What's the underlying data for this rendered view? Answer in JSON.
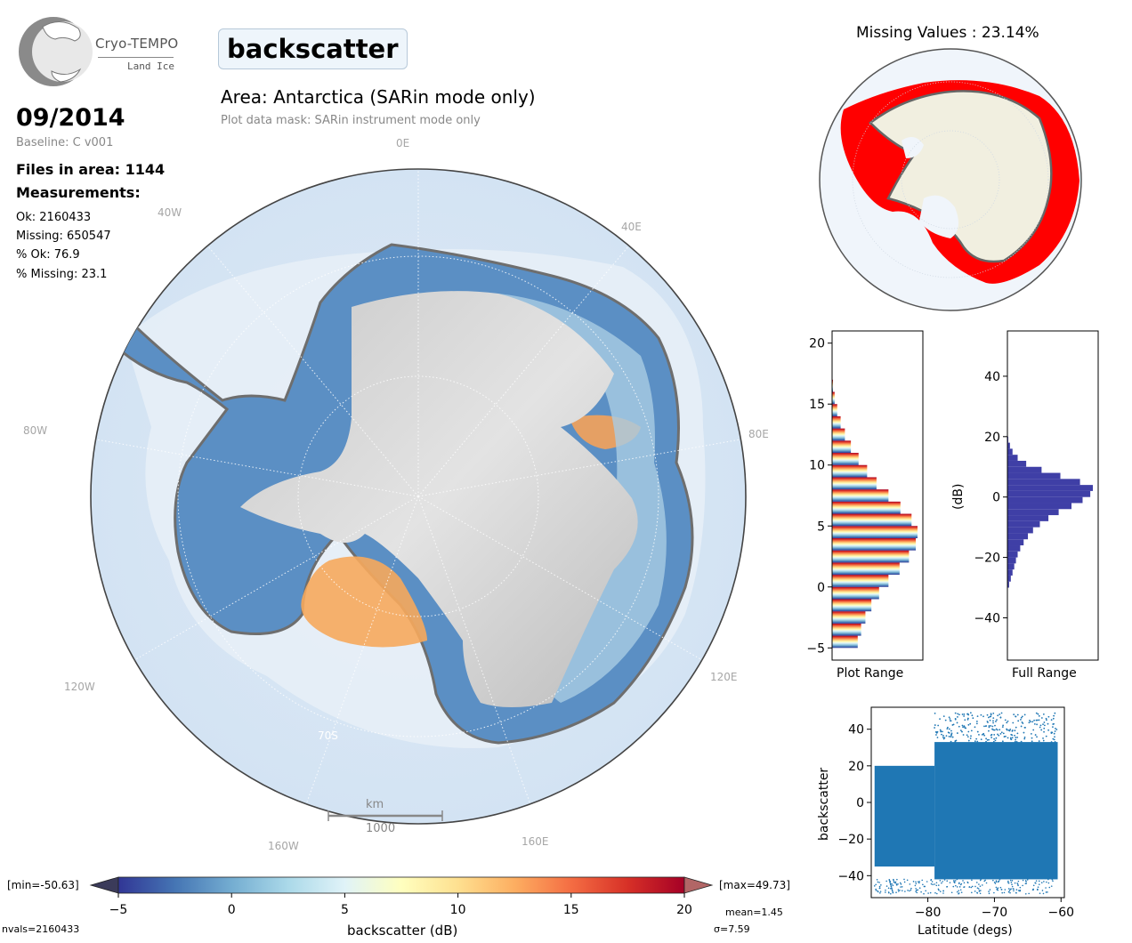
{
  "logo": {
    "title": "Cryo-TEMPO",
    "subtitle": "Land Ice"
  },
  "header": {
    "parameter": "backscatter",
    "area_title": "Area: Antarctica (SARin mode only)",
    "mask_note": "Plot data mask: SARin instrument mode only"
  },
  "info": {
    "date": "09/2014",
    "baseline": "Baseline: C v001",
    "files": "Files in area: 1144",
    "measurements_heading": "Measurements:",
    "ok": "Ok: 2160433",
    "missing": "Missing: 650547",
    "pct_ok": "% Ok: 76.9",
    "pct_missing": "% Missing: 23.1"
  },
  "main_map": {
    "longitude_labels": [
      "0E",
      "40E",
      "80E",
      "120E",
      "160E",
      "160W",
      "120W",
      "80W",
      "40W"
    ],
    "latitude_label": "70S",
    "scalebar_unit": "km",
    "scalebar_value": "1000"
  },
  "colorbar": {
    "label": "backscatter (dB)",
    "ticks": [
      "−5",
      "0",
      "5",
      "10",
      "15",
      "20"
    ],
    "min_label": "[min=-50.63]",
    "max_label": "[max=49.73]",
    "mean": "mean=1.45",
    "sigma": "σ=7.59",
    "nvals": "nvals=2160433",
    "colors": [
      "#313695",
      "#4575b4",
      "#74add1",
      "#abd9e9",
      "#e0f3f8",
      "#ffffbf",
      "#fee090",
      "#fdae61",
      "#f46d43",
      "#d73027",
      "#a50026"
    ]
  },
  "missing_map": {
    "title": "Missing Values : 23.14%",
    "missing_color": "#ff0000"
  },
  "chart_data": [
    {
      "type": "histogram",
      "id": "plot-range",
      "xlabel": "Plot Range",
      "orientation": "horizontal",
      "ylim": [
        -6,
        21
      ],
      "yticks": [
        -5,
        0,
        5,
        10,
        15,
        20
      ],
      "bins": [
        -5,
        -4,
        -3,
        -2,
        -1,
        0,
        1,
        2,
        3,
        4,
        5,
        6,
        7,
        8,
        9,
        10,
        11,
        12,
        13,
        14,
        15,
        16
      ],
      "values": [
        0.3,
        0.34,
        0.39,
        0.46,
        0.55,
        0.66,
        0.79,
        0.9,
        0.98,
        1.0,
        0.93,
        0.8,
        0.66,
        0.52,
        0.41,
        0.31,
        0.22,
        0.15,
        0.1,
        0.06,
        0.03,
        0.01
      ]
    },
    {
      "type": "histogram",
      "id": "full-range",
      "xlabel": "Full Range",
      "ylabel": "(dB)",
      "orientation": "horizontal",
      "ylim": [
        -54,
        55
      ],
      "yticks": [
        -40,
        -20,
        0,
        20,
        40
      ],
      "bins": [
        -30,
        -28,
        -26,
        -24,
        -22,
        -20,
        -18,
        -16,
        -14,
        -12,
        -10,
        -8,
        -6,
        -4,
        -2,
        0,
        2,
        4,
        6,
        8,
        10,
        12,
        14,
        16,
        18
      ],
      "values": [
        0.02,
        0.04,
        0.06,
        0.08,
        0.1,
        0.12,
        0.15,
        0.19,
        0.24,
        0.3,
        0.38,
        0.48,
        0.6,
        0.75,
        0.88,
        0.97,
        1.0,
        0.85,
        0.62,
        0.4,
        0.22,
        0.12,
        0.06,
        0.03,
        0.01
      ],
      "color": "#3f3fa6"
    },
    {
      "type": "scatter",
      "id": "lat-scatter",
      "xlabel": "Latitude (degs)",
      "ylabel": "backscatter",
      "xlim": [
        -88.5,
        -59.5
      ],
      "ylim": [
        -52,
        52
      ],
      "xticks": [
        -80,
        -70,
        -60
      ],
      "yticks": [
        -40,
        -20,
        0,
        20,
        40
      ],
      "color": "#1f77b4",
      "bands": [
        {
          "x": [
            -88,
            -79
          ],
          "y_low": -35,
          "y_high": 20
        },
        {
          "x": [
            -79,
            -60.5
          ],
          "y_low": -42,
          "y_high": 33
        }
      ]
    }
  ]
}
